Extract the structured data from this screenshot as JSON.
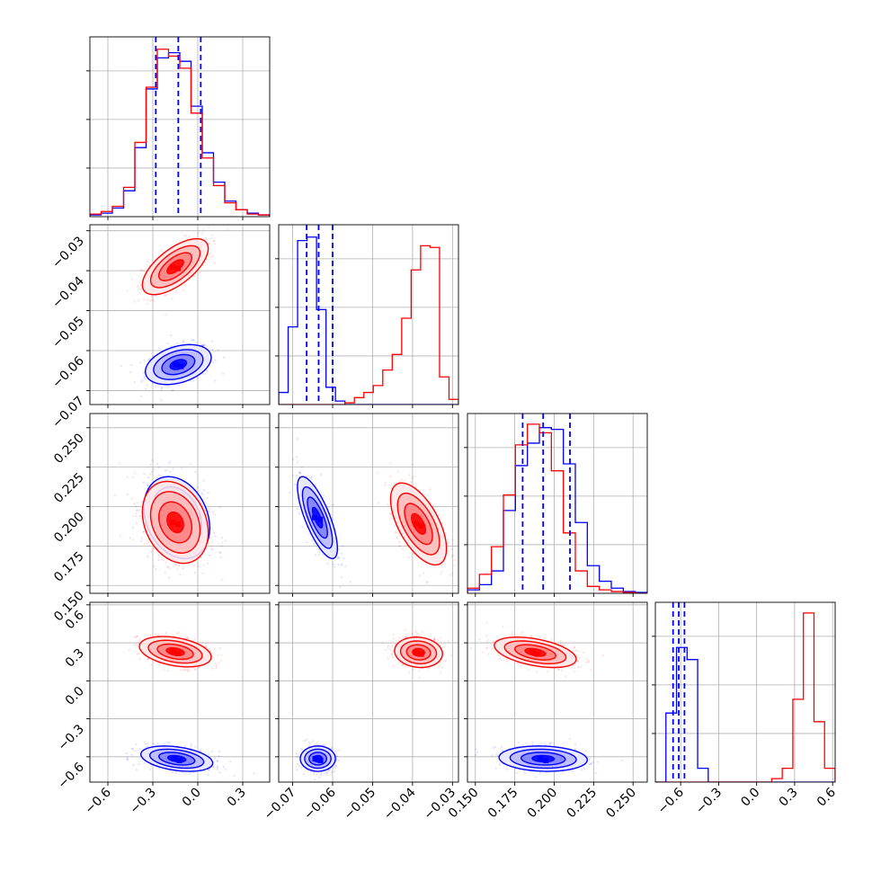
{
  "chart_data": {
    "type": "corner",
    "series": [
      {
        "name": "",
        "color": "#0000ff"
      },
      {
        "name": "",
        "color": "#ff0000"
      }
    ],
    "axes": [
      {
        "range": [
          -0.72,
          0.48
        ],
        "ticks": [
          -0.6,
          -0.3,
          0.0,
          0.3
        ],
        "tick_labels": [
          "−0.6",
          "−0.3",
          "0.0",
          "0.3"
        ]
      },
      {
        "range": [
          -0.0735,
          -0.0285
        ],
        "ticks": [
          -0.07,
          -0.06,
          -0.05,
          -0.04,
          -0.03
        ],
        "tick_labels": [
          "−0.07",
          "−0.06",
          "−0.05",
          "−0.04",
          "−0.03"
        ]
      },
      {
        "range": [
          0.145,
          0.259
        ],
        "ticks": [
          0.15,
          0.175,
          0.2,
          0.225,
          0.25
        ],
        "tick_labels": [
          "0.150",
          "0.175",
          "0.200",
          "0.225",
          "0.250"
        ]
      },
      {
        "range": [
          -0.8,
          0.62
        ],
        "ticks": [
          -0.6,
          -0.3,
          0.0,
          0.3,
          0.6
        ],
        "tick_labels": [
          "−0.6",
          "−0.3",
          "0.0",
          "0.3",
          "0.6"
        ]
      }
    ],
    "quantiles": [
      [
        -0.28,
        -0.13,
        0.02
      ],
      [
        -0.0665,
        -0.0635,
        -0.06
      ],
      [
        0.18,
        0.193,
        0.21
      ],
      [
        -0.66,
        -0.615,
        -0.57
      ]
    ],
    "histograms": [
      [
        [
          0.01,
          0.02,
          0.05,
          0.15,
          0.4,
          0.74,
          0.92,
          0.95,
          0.9,
          0.64,
          0.37,
          0.2,
          0.09,
          0.04,
          0.02,
          0.01
        ],
        [
          0.015,
          0.03,
          0.06,
          0.17,
          0.43,
          0.75,
          0.97,
          0.93,
          0.86,
          0.6,
          0.34,
          0.18,
          0.08,
          0.04,
          0.015,
          0.01
        ]
      ],
      [
        [
          0.07,
          0.45,
          0.95,
          0.97,
          0.55,
          0.1,
          0.02,
          0.0,
          0.0,
          0.0,
          0.0,
          0.0,
          0.0,
          0.0,
          0.0,
          0.0,
          0.0,
          0.0,
          0.0
        ],
        [
          0.0,
          0.0,
          0.0,
          0.0,
          0.0,
          0.0,
          0.0,
          0.01,
          0.04,
          0.07,
          0.11,
          0.2,
          0.29,
          0.5,
          0.78,
          0.92,
          0.91,
          0.16,
          0.03
        ]
      ],
      [
        [
          0.02,
          0.05,
          0.13,
          0.48,
          0.74,
          0.87,
          0.96,
          0.95,
          0.75,
          0.41,
          0.16,
          0.07,
          0.03,
          0.01,
          0.005
        ],
        [
          0.03,
          0.11,
          0.27,
          0.57,
          0.86,
          0.98,
          0.93,
          0.71,
          0.35,
          0.13,
          0.04,
          0.02,
          0.01,
          0.005,
          0.0
        ]
      ],
      [
        [
          0.0,
          0.4,
          0.78,
          0.71,
          0.08,
          0.0,
          0.0,
          0.0,
          0.0,
          0.0,
          0.0,
          0.0,
          0.0,
          0.0,
          0.0,
          0.0,
          0.0
        ],
        [
          0.0,
          0.0,
          0.0,
          0.0,
          0.0,
          0.0,
          0.0,
          0.0,
          0.0,
          0.0,
          0.0,
          0.02,
          0.08,
          0.48,
          0.98,
          0.35,
          0.08
        ]
      ]
    ],
    "scatter_2d": [
      {
        "row": 1,
        "col": 0,
        "clusters": [
          {
            "series": 0,
            "mean": [
              -0.13,
              -0.0635
            ],
            "sd": [
              0.11,
              0.0025
            ],
            "corr": 0.35,
            "n": 480
          },
          {
            "series": 1,
            "mean": [
              -0.15,
              -0.039
            ],
            "sd": [
              0.11,
              0.0035
            ],
            "corr": 0.65,
            "n": 480
          }
        ]
      },
      {
        "row": 2,
        "col": 0,
        "clusters": [
          {
            "series": 0,
            "mean": [
              -0.14,
              0.193
            ],
            "sd": [
              0.11,
              0.013
            ],
            "corr": -0.25,
            "n": 480
          },
          {
            "series": 1,
            "mean": [
              -0.15,
              0.19
            ],
            "sd": [
              0.11,
              0.013
            ],
            "corr": -0.25,
            "n": 480
          }
        ]
      },
      {
        "row": 2,
        "col": 1,
        "clusters": [
          {
            "series": 0,
            "mean": [
              -0.0638,
              0.193
            ],
            "sd": [
              0.0025,
              0.013
            ],
            "corr": -0.75,
            "n": 480
          },
          {
            "series": 1,
            "mean": [
              -0.0385,
              0.189
            ],
            "sd": [
              0.0035,
              0.013
            ],
            "corr": -0.6,
            "n": 480
          }
        ]
      },
      {
        "row": 3,
        "col": 0,
        "clusters": [
          {
            "series": 0,
            "mean": [
              -0.14,
              -0.615
            ],
            "sd": [
              0.12,
              0.05
            ],
            "corr": -0.35,
            "n": 480
          },
          {
            "series": 1,
            "mean": [
              -0.15,
              0.23
            ],
            "sd": [
              0.12,
              0.06
            ],
            "corr": -0.35,
            "n": 480
          }
        ]
      },
      {
        "row": 3,
        "col": 1,
        "clusters": [
          {
            "series": 0,
            "mean": [
              -0.0637,
              -0.615
            ],
            "sd": [
              0.0022,
              0.05
            ],
            "corr": 0.0,
            "n": 480
          },
          {
            "series": 1,
            "mean": [
              -0.0385,
              0.225
            ],
            "sd": [
              0.003,
              0.06
            ],
            "corr": -0.1,
            "n": 480
          }
        ]
      },
      {
        "row": 3,
        "col": 2,
        "clusters": [
          {
            "series": 0,
            "mean": [
              0.193,
              -0.615
            ],
            "sd": [
              0.014,
              0.05
            ],
            "corr": -0.1,
            "n": 480
          },
          {
            "series": 1,
            "mean": [
              0.188,
              0.225
            ],
            "sd": [
              0.013,
              0.06
            ],
            "corr": -0.45,
            "n": 480
          }
        ]
      }
    ],
    "grid": true
  }
}
